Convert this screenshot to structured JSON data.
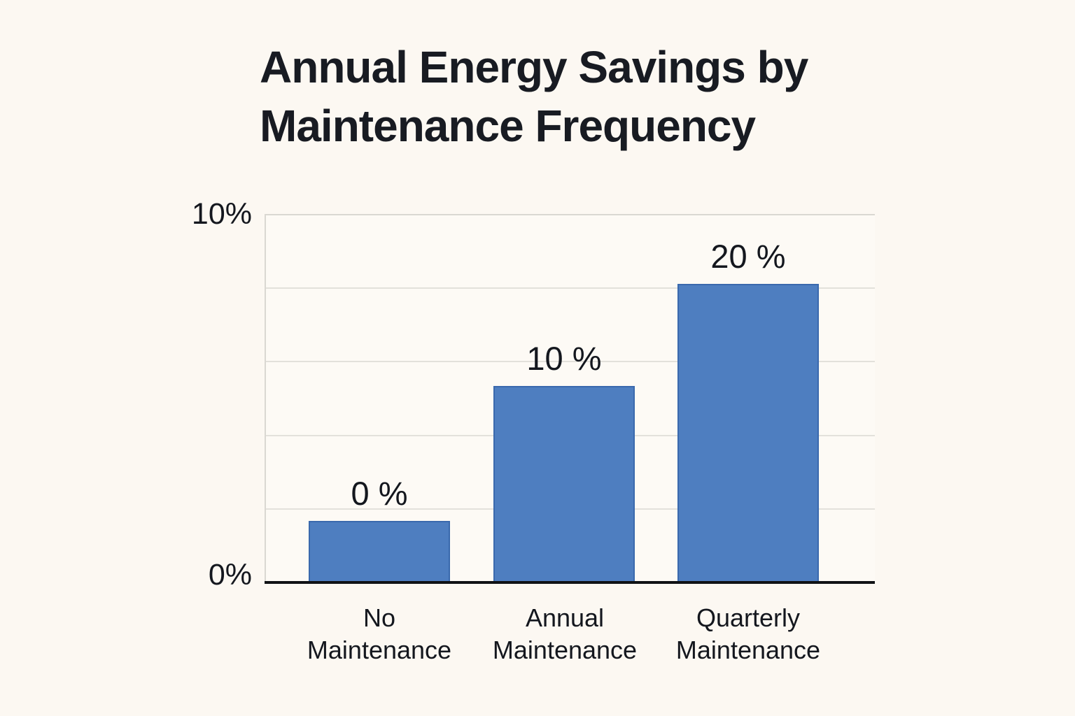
{
  "page": {
    "background": "#FCF8F2"
  },
  "title": {
    "line1": "Annual Energy Savings by",
    "line2": "Maintenance Frequency"
  },
  "chart_data": {
    "type": "bar",
    "title": "Annual Energy Savings by Maintenance Frequency",
    "categories": [
      "No Maintenance",
      "Annual Maintenance",
      "Quarterly Maintenance"
    ],
    "values": [
      0,
      10,
      20
    ],
    "value_labels": [
      "0 %",
      "10 %",
      "20 %"
    ],
    "y_ticks": [
      "0%",
      "10%"
    ],
    "ylim": [
      0,
      10
    ],
    "xlabel": "",
    "ylabel": "",
    "grid": "horizontal",
    "gridline_count": 4,
    "legend": "none",
    "bar_color": "#4E7EC0",
    "bar_border_color": "#3A69AD",
    "axis_color": "#101215",
    "text_color": "#14171E",
    "bar_height_fractions": [
      0.169,
      0.536,
      0.814
    ]
  }
}
